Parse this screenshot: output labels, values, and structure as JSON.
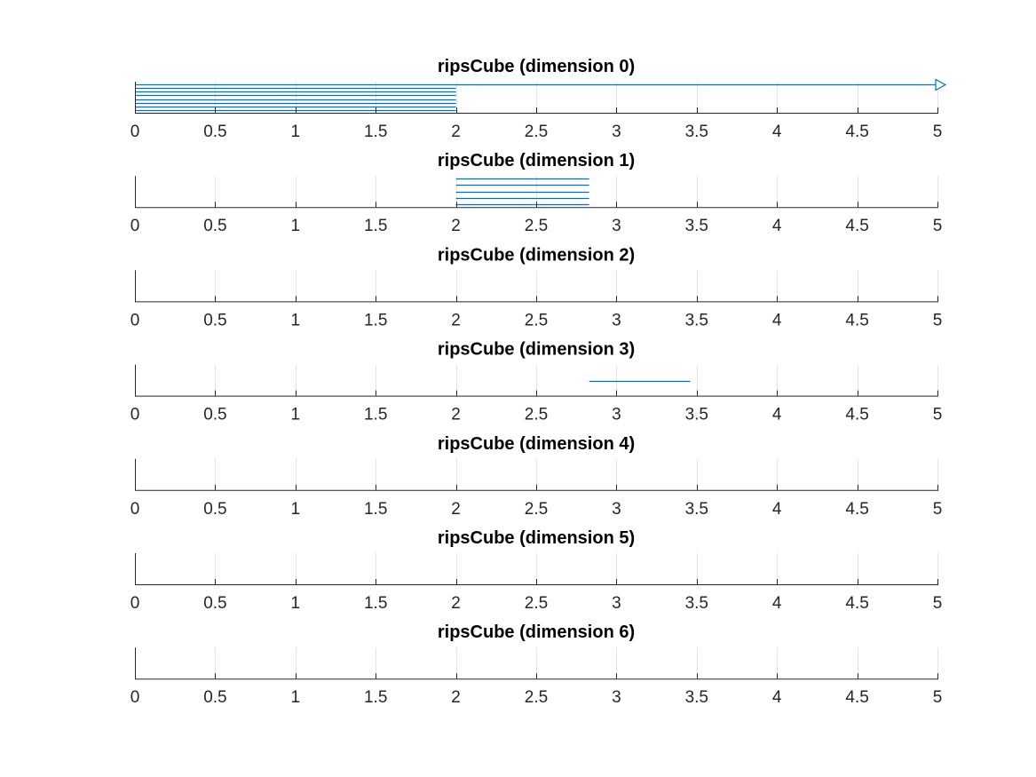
{
  "chart_data": [
    {
      "type": "barcode",
      "title": "ripsCube (dimension 0)",
      "xlim": [
        0,
        5
      ],
      "x_ticks": [
        0,
        0.5,
        1,
        1.5,
        2,
        2.5,
        3,
        3.5,
        4,
        4.5,
        5
      ],
      "x_tick_labels": [
        "0",
        "0.5",
        "1",
        "1.5",
        "2",
        "2.5",
        "3",
        "3.5",
        "4",
        "4.5",
        "5"
      ],
      "grid": true,
      "bars": [
        {
          "birth": 0,
          "death": null,
          "infinite": true
        },
        {
          "birth": 0,
          "death": 2
        },
        {
          "birth": 0,
          "death": 2
        },
        {
          "birth": 0,
          "death": 2
        },
        {
          "birth": 0,
          "death": 2
        },
        {
          "birth": 0,
          "death": 2
        },
        {
          "birth": 0,
          "death": 2
        },
        {
          "birth": 0,
          "death": 2
        }
      ]
    },
    {
      "type": "barcode",
      "title": "ripsCube (dimension 1)",
      "xlim": [
        0,
        5
      ],
      "x_ticks": [
        0,
        0.5,
        1,
        1.5,
        2,
        2.5,
        3,
        3.5,
        4,
        4.5,
        5
      ],
      "x_tick_labels": [
        "0",
        "0.5",
        "1",
        "1.5",
        "2",
        "2.5",
        "3",
        "3.5",
        "4",
        "4.5",
        "5"
      ],
      "grid": true,
      "bars": [
        {
          "birth": 2,
          "death": 2.83
        },
        {
          "birth": 2,
          "death": 2.83
        },
        {
          "birth": 2,
          "death": 2.83
        },
        {
          "birth": 2,
          "death": 2.83
        },
        {
          "birth": 2,
          "death": 2.83
        }
      ]
    },
    {
      "type": "barcode",
      "title": "ripsCube (dimension 2)",
      "xlim": [
        0,
        5
      ],
      "x_ticks": [
        0,
        0.5,
        1,
        1.5,
        2,
        2.5,
        3,
        3.5,
        4,
        4.5,
        5
      ],
      "x_tick_labels": [
        "0",
        "0.5",
        "1",
        "1.5",
        "2",
        "2.5",
        "3",
        "3.5",
        "4",
        "4.5",
        "5"
      ],
      "grid": true,
      "bars": []
    },
    {
      "type": "barcode",
      "title": "ripsCube (dimension 3)",
      "xlim": [
        0,
        5
      ],
      "x_ticks": [
        0,
        0.5,
        1,
        1.5,
        2,
        2.5,
        3,
        3.5,
        4,
        4.5,
        5
      ],
      "x_tick_labels": [
        "0",
        "0.5",
        "1",
        "1.5",
        "2",
        "2.5",
        "3",
        "3.5",
        "4",
        "4.5",
        "5"
      ],
      "grid": true,
      "bars": [
        {
          "birth": 2.83,
          "death": 3.46
        }
      ]
    },
    {
      "type": "barcode",
      "title": "ripsCube (dimension 4)",
      "xlim": [
        0,
        5
      ],
      "x_ticks": [
        0,
        0.5,
        1,
        1.5,
        2,
        2.5,
        3,
        3.5,
        4,
        4.5,
        5
      ],
      "x_tick_labels": [
        "0",
        "0.5",
        "1",
        "1.5",
        "2",
        "2.5",
        "3",
        "3.5",
        "4",
        "4.5",
        "5"
      ],
      "grid": true,
      "bars": []
    },
    {
      "type": "barcode",
      "title": "ripsCube (dimension 5)",
      "xlim": [
        0,
        5
      ],
      "x_ticks": [
        0,
        0.5,
        1,
        1.5,
        2,
        2.5,
        3,
        3.5,
        4,
        4.5,
        5
      ],
      "x_tick_labels": [
        "0",
        "0.5",
        "1",
        "1.5",
        "2",
        "2.5",
        "3",
        "3.5",
        "4",
        "4.5",
        "5"
      ],
      "grid": true,
      "bars": []
    },
    {
      "type": "barcode",
      "title": "ripsCube (dimension 6)",
      "xlim": [
        0,
        5
      ],
      "x_ticks": [
        0,
        0.5,
        1,
        1.5,
        2,
        2.5,
        3,
        3.5,
        4,
        4.5,
        5
      ],
      "x_tick_labels": [
        "0",
        "0.5",
        "1",
        "1.5",
        "2",
        "2.5",
        "3",
        "3.5",
        "4",
        "4.5",
        "5"
      ],
      "grid": true,
      "bars": []
    }
  ],
  "colors": {
    "bar": "#0072BD",
    "axis": "#262626",
    "grid": "#e4e4e4",
    "title": "#000000",
    "background": "#ffffff"
  }
}
